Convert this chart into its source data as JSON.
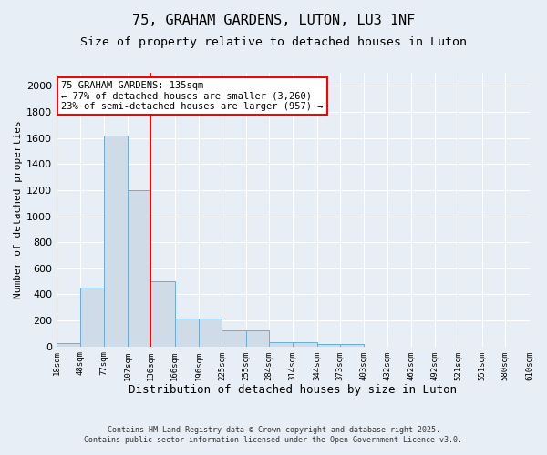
{
  "title": "75, GRAHAM GARDENS, LUTON, LU3 1NF",
  "subtitle": "Size of property relative to detached houses in Luton",
  "xlabel": "Distribution of detached houses by size in Luton",
  "ylabel": "Number of detached properties",
  "bin_edges": [
    18,
    48,
    77,
    107,
    136,
    166,
    196,
    225,
    255,
    284,
    314,
    344,
    373,
    403,
    432,
    462,
    492,
    521,
    551,
    580,
    610
  ],
  "bar_heights": [
    25,
    455,
    1620,
    1200,
    500,
    215,
    215,
    125,
    125,
    35,
    35,
    20,
    20,
    0,
    0,
    0,
    0,
    0,
    0,
    0
  ],
  "bar_color": "#cfdce8",
  "bar_edgecolor": "#6baed6",
  "redline_x": 136,
  "ylim": [
    0,
    2100
  ],
  "yticks": [
    0,
    200,
    400,
    600,
    800,
    1000,
    1200,
    1400,
    1600,
    1800,
    2000
  ],
  "annotation_line1": "75 GRAHAM GARDENS: 135sqm",
  "annotation_line2": "← 77% of detached houses are smaller (3,260)",
  "annotation_line3": "23% of semi-detached houses are larger (957) →",
  "footer_line1": "Contains HM Land Registry data © Crown copyright and database right 2025.",
  "footer_line2": "Contains public sector information licensed under the Open Government Licence v3.0.",
  "bg_color": "#e8eef5",
  "plot_bg_color": "#e8eef5",
  "grid_color": "#ffffff",
  "title_fontsize": 11,
  "subtitle_fontsize": 9.5,
  "ylabel_fontsize": 8,
  "xlabel_fontsize": 9,
  "ytick_fontsize": 8,
  "xtick_fontsize": 6.5
}
